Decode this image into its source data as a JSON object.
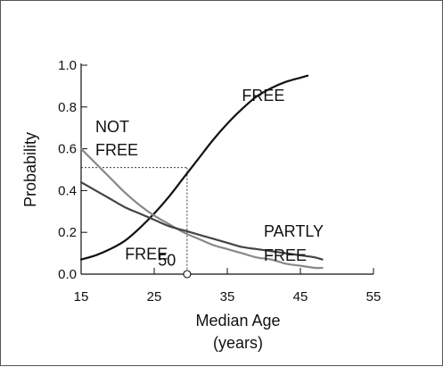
{
  "chart_data": {
    "type": "line",
    "title": "",
    "xlabel": "Median Age",
    "xlabel_unit": "(years)",
    "ylabel": "Probability",
    "xlim": [
      15,
      55
    ],
    "ylim": [
      0.0,
      1.0
    ],
    "x_ticks": [
      "15",
      "25",
      "35",
      "45",
      "55"
    ],
    "y_ticks": [
      "0.0",
      "0.2",
      "0.4",
      "0.6",
      "0.8",
      "1.0"
    ],
    "grid": false,
    "legend": "none",
    "series": [
      {
        "name": "FREE",
        "color": "#111111",
        "x": [
          15,
          17,
          19,
          21,
          23,
          25,
          27,
          29,
          31,
          33,
          35,
          37,
          39,
          41,
          43,
          45,
          46
        ],
        "y": [
          0.07,
          0.09,
          0.12,
          0.16,
          0.22,
          0.29,
          0.37,
          0.46,
          0.55,
          0.64,
          0.72,
          0.79,
          0.85,
          0.89,
          0.92,
          0.94,
          0.95
        ]
      },
      {
        "name": "NOT FREE",
        "color": "#888888",
        "x": [
          15,
          17,
          19,
          21,
          23,
          25,
          27,
          29,
          31,
          33,
          35,
          37,
          39,
          41,
          43,
          45,
          47,
          48
        ],
        "y": [
          0.6,
          0.53,
          0.46,
          0.39,
          0.33,
          0.28,
          0.24,
          0.2,
          0.17,
          0.14,
          0.12,
          0.1,
          0.08,
          0.07,
          0.05,
          0.04,
          0.03,
          0.03
        ]
      },
      {
        "name": "PARTLY FREE",
        "color": "#444444",
        "x": [
          15,
          17,
          19,
          21,
          23,
          25,
          27,
          29,
          31,
          33,
          35,
          37,
          39,
          41,
          43,
          45,
          47,
          48
        ],
        "y": [
          0.44,
          0.4,
          0.36,
          0.32,
          0.29,
          0.26,
          0.23,
          0.21,
          0.19,
          0.17,
          0.15,
          0.13,
          0.12,
          0.11,
          0.1,
          0.09,
          0.08,
          0.07
        ]
      }
    ],
    "annotations": [
      {
        "id": "not-free",
        "lines": [
          "NOT",
          "FREE"
        ],
        "anchor_x": 15,
        "anchor_y": 0.68
      },
      {
        "id": "free",
        "lines": [
          "FREE"
        ],
        "anchor_x": 37,
        "anchor_y": 0.83
      },
      {
        "id": "partly-free",
        "lines": [
          "PARTLY",
          "FREE"
        ],
        "anchor_x": 40,
        "anchor_y": 0.18
      },
      {
        "id": "free50",
        "lines": [
          "FREE"
        ],
        "subscript": "50",
        "anchor_x": 21,
        "anchor_y": 0.07
      }
    ],
    "free50": {
      "x": 29.5,
      "y": 0.51
    }
  }
}
